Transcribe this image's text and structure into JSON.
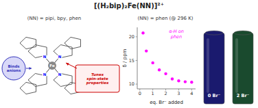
{
  "chart_data": {
    "type": "scatter",
    "title": "[(H₂bip)₂Fe(NN)]²⁺",
    "subtitle": [
      "(NN) = pipi, bpy, phen",
      "(NN) = phen (@ 296 K)"
    ],
    "x": [
      0.25,
      0.5,
      1.0,
      1.5,
      2.0,
      2.5,
      3.0,
      3.5,
      4.0
    ],
    "values": [
      20.8,
      17.0,
      14.5,
      13.0,
      12.2,
      11.1,
      10.7,
      10.5,
      10.4
    ],
    "color": "#ff00ff",
    "xlabel": "eq. Br⁻ added",
    "ylabel": "δ / ppm",
    "xlim": [
      -0.2,
      4.3
    ],
    "ylim": [
      9,
      22
    ],
    "xticks": [
      0,
      1,
      2,
      3,
      4
    ],
    "yticks": [
      10,
      15,
      20
    ],
    "grid": false,
    "annotations": [
      "α-H on\nphen",
      "Binds\nanions",
      "Tunes\nspin-state\nproperties",
      "0 Br⁻",
      "2 Br⁻",
      "Fe",
      "N",
      "N",
      "N",
      "N"
    ]
  }
}
